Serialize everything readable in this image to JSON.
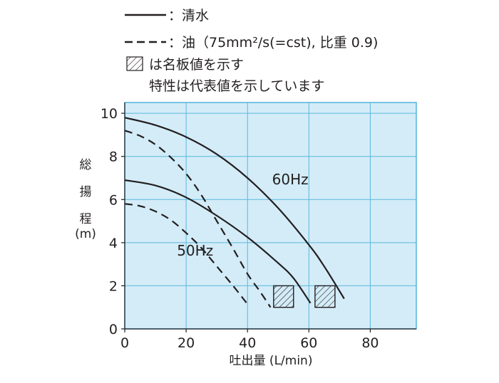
{
  "legend": {
    "solid_label": "：清水",
    "dashed_label": "：油（75mm²/s(=cst), 比重 0.9)",
    "hatch_label": "は名板値を示す",
    "note": "特性は代表値を示しています"
  },
  "chart_data": {
    "type": "line",
    "xlabel": "吐出量 (L/min)",
    "ylabel": [
      "総",
      "揚",
      "程",
      "(m)"
    ],
    "xlim": [
      0,
      95
    ],
    "ylim": [
      0,
      10.5
    ],
    "x_ticks": [
      "0",
      "20",
      "40",
      "60",
      "80"
    ],
    "y_ticks": [
      "0",
      "2",
      "4",
      "6",
      "8",
      "10"
    ],
    "plot_background": "#d3ecf8",
    "frame_color": "#5bb7dc",
    "curve_labels": [
      {
        "text": "60Hz",
        "x": 48,
        "y": 6.7
      },
      {
        "text": "50Hz",
        "x": 17,
        "y": 3.4
      }
    ],
    "series": [
      {
        "style": "solid",
        "x": [
          0,
          10,
          20,
          30,
          40,
          50,
          60,
          65,
          71.5
        ],
        "y": [
          9.8,
          9.45,
          8.9,
          8.1,
          7.0,
          5.6,
          3.9,
          2.9,
          1.4
        ]
      },
      {
        "style": "dashed",
        "x": [
          0,
          5,
          10,
          15,
          20,
          25,
          30,
          35,
          40,
          44,
          47.5
        ],
        "y": [
          9.2,
          8.95,
          8.55,
          7.95,
          7.2,
          6.2,
          5.0,
          3.8,
          2.55,
          1.75,
          1.0
        ]
      },
      {
        "style": "solid",
        "x": [
          0,
          10,
          20,
          30,
          40,
          50,
          55,
          60.5
        ],
        "y": [
          6.9,
          6.65,
          6.1,
          5.25,
          4.25,
          3.05,
          2.35,
          1.2
        ]
      },
      {
        "style": "dashed",
        "x": [
          0,
          5,
          10,
          15,
          20,
          25,
          30,
          35,
          40
        ],
        "y": [
          5.8,
          5.7,
          5.45,
          5.05,
          4.45,
          3.75,
          2.9,
          2.05,
          1.15
        ]
      }
    ],
    "rated_points": [
      {
        "x0": 48.5,
        "x1": 55,
        "y0": 1.0,
        "y1": 2.0
      },
      {
        "x0": 62,
        "x1": 68.5,
        "y0": 1.0,
        "y1": 2.0
      }
    ]
  }
}
